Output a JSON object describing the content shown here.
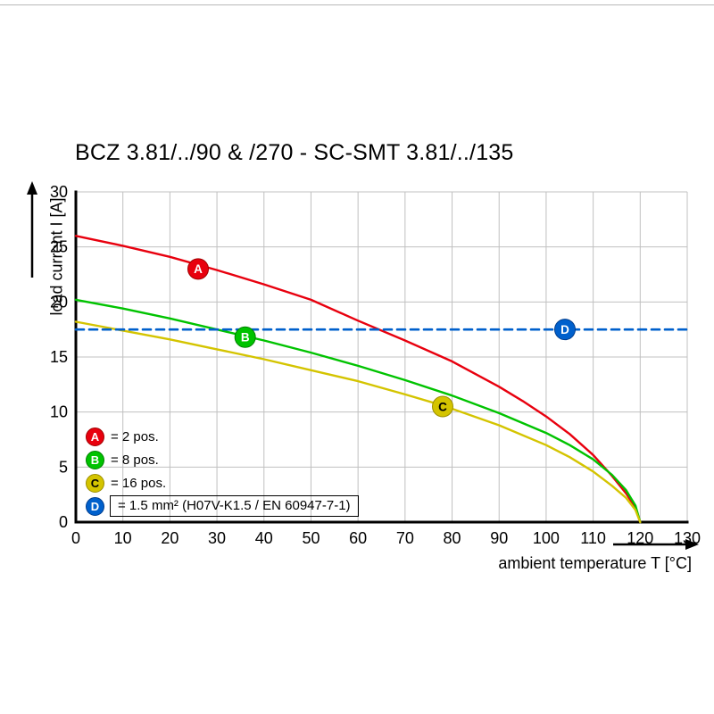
{
  "title": "BCZ 3.81/../90 & /270 - SC-SMT 3.81/../135",
  "chart_data": {
    "type": "line",
    "title": "BCZ 3.81/../90 & /270 - SC-SMT 3.81/../135",
    "xlabel": "ambient temperature T [°C]",
    "ylabel": "load current I [A]",
    "xlim": [
      0,
      130
    ],
    "ylim": [
      0,
      30
    ],
    "x_ticks": [
      0,
      10,
      20,
      30,
      40,
      50,
      60,
      70,
      80,
      90,
      100,
      110,
      120,
      130
    ],
    "y_ticks": [
      0,
      5,
      10,
      15,
      20,
      25,
      30
    ],
    "grid": true,
    "grid_color": "#c0c0c0",
    "axis_color": "#000000",
    "legend_position": "bottom-left-inside",
    "series": [
      {
        "name": "A",
        "label": "= 2 pos.",
        "color": "#e8000e",
        "edge_color": "#a00000",
        "style": "solid",
        "boxed": false,
        "marker": {
          "x": 26,
          "y": 23,
          "letter": "A",
          "text_color": "#ffffff"
        },
        "points": [
          [
            0,
            26
          ],
          [
            10,
            25.1
          ],
          [
            20,
            24.1
          ],
          [
            30,
            22.9
          ],
          [
            40,
            21.6
          ],
          [
            50,
            20.2
          ],
          [
            60,
            18.3
          ],
          [
            70,
            16.5
          ],
          [
            80,
            14.6
          ],
          [
            90,
            12.3
          ],
          [
            95,
            11
          ],
          [
            100,
            9.6
          ],
          [
            105,
            8
          ],
          [
            110,
            6.1
          ],
          [
            114,
            4.2
          ],
          [
            117,
            2.6
          ],
          [
            119,
            1.3
          ],
          [
            120,
            0
          ]
        ]
      },
      {
        "name": "B",
        "label": "= 8 pos.",
        "color": "#00c300",
        "edge_color": "#008000",
        "style": "solid",
        "boxed": false,
        "marker": {
          "x": 36,
          "y": 16.8,
          "letter": "B",
          "text_color": "#ffffff"
        },
        "points": [
          [
            0,
            20.2
          ],
          [
            10,
            19.4
          ],
          [
            20,
            18.5
          ],
          [
            30,
            17.5
          ],
          [
            40,
            16.5
          ],
          [
            50,
            15.4
          ],
          [
            60,
            14.2
          ],
          [
            70,
            12.9
          ],
          [
            80,
            11.5
          ],
          [
            90,
            9.9
          ],
          [
            100,
            8.1
          ],
          [
            105,
            7
          ],
          [
            110,
            5.7
          ],
          [
            114,
            4.3
          ],
          [
            117,
            2.9
          ],
          [
            119,
            1.5
          ],
          [
            120,
            0
          ]
        ]
      },
      {
        "name": "C",
        "label": "= 16 pos.",
        "color": "#d4c400",
        "edge_color": "#9c8f00",
        "style": "solid",
        "boxed": false,
        "marker": {
          "x": 78,
          "y": 10.5,
          "letter": "C",
          "text_color": "#000000"
        },
        "points": [
          [
            0,
            18.2
          ],
          [
            10,
            17.4
          ],
          [
            20,
            16.6
          ],
          [
            30,
            15.7
          ],
          [
            40,
            14.8
          ],
          [
            50,
            13.8
          ],
          [
            60,
            12.8
          ],
          [
            70,
            11.6
          ],
          [
            78,
            10.6
          ],
          [
            80,
            10.3
          ],
          [
            90,
            8.8
          ],
          [
            100,
            7
          ],
          [
            105,
            5.9
          ],
          [
            110,
            4.6
          ],
          [
            114,
            3.3
          ],
          [
            117,
            2.2
          ],
          [
            119,
            1.1
          ],
          [
            120,
            0
          ]
        ]
      },
      {
        "name": "D",
        "label": "= 1.5 mm² (H07V-K1.5 / EN 60947-7-1)",
        "color": "#0060cc",
        "edge_color": "#003c8c",
        "style": "dashed",
        "boxed": true,
        "marker": {
          "x": 104,
          "y": 17.5,
          "letter": "D",
          "text_color": "#ffffff"
        },
        "points": [
          [
            0,
            17.5
          ],
          [
            130,
            17.5
          ]
        ]
      }
    ]
  }
}
